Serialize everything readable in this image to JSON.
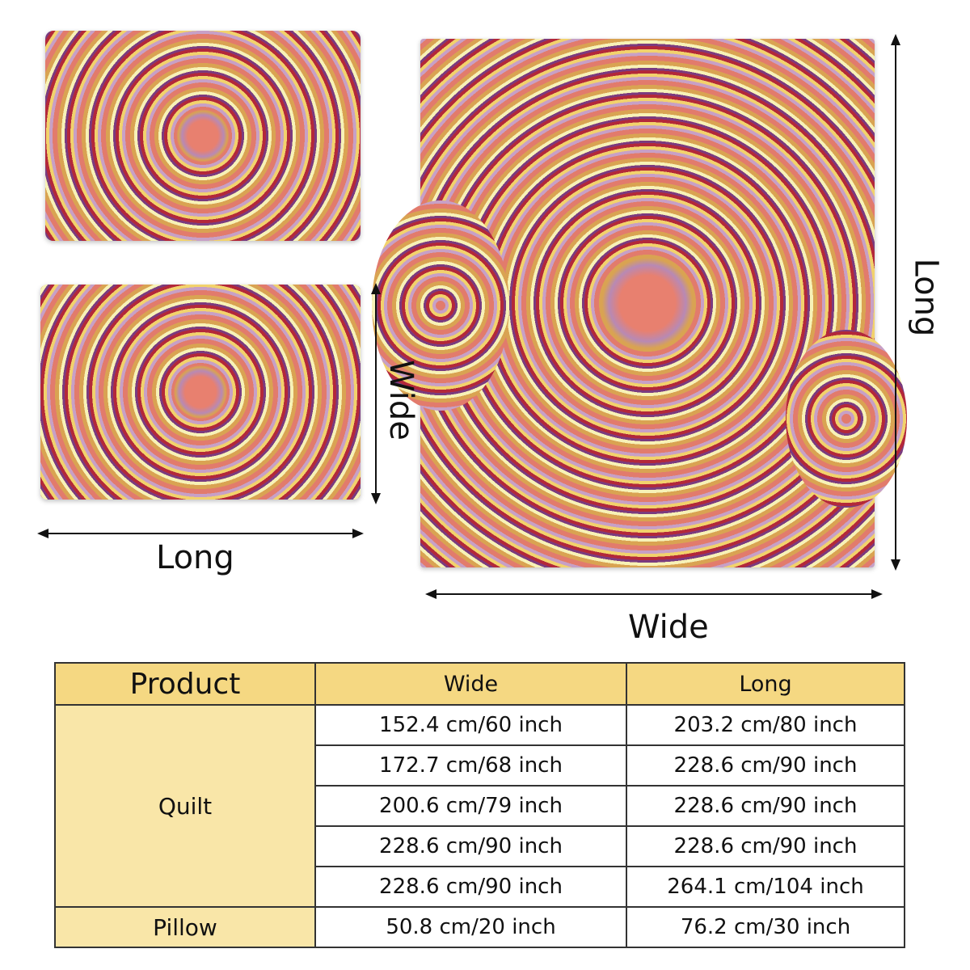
{
  "pillow_diagram": {
    "width_label": "Wide",
    "length_label": "Long"
  },
  "quilt_diagram": {
    "width_label": "Wide",
    "length_label": "Long"
  },
  "size_table": {
    "headers": {
      "product": "Product",
      "wide": "Wide",
      "long": "Long"
    },
    "quilt": {
      "label": "Quilt",
      "rows": [
        {
          "wide": "152.4 cm/60 inch",
          "long": "203.2 cm/80 inch"
        },
        {
          "wide": "172.7 cm/68 inch",
          "long": "228.6 cm/90 inch"
        },
        {
          "wide": "200.6 cm/79 inch",
          "long": "228.6 cm/90 inch"
        },
        {
          "wide": "228.6 cm/90 inch",
          "long": "228.6 cm/90 inch"
        },
        {
          "wide": "228.6 cm/90 inch",
          "long": "264.1 cm/104 inch"
        }
      ]
    },
    "pillow": {
      "label": "Pillow",
      "wide": "50.8 cm/20 inch",
      "long": "76.2 cm/30 inch"
    }
  },
  "colors": {
    "header_bg": "#f5d882",
    "product_cell_bg": "#f9e6a8",
    "pattern_base": "#d4806e"
  }
}
